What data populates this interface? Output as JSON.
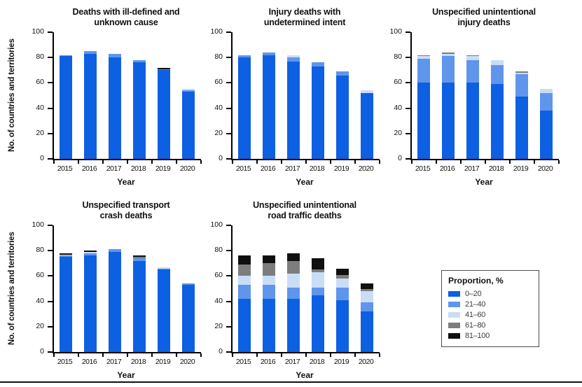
{
  "figure": {
    "x_axis_label": "Year",
    "y_axis_label": "No. of countries and territories"
  },
  "legend": {
    "title": "Proportion, %",
    "items": [
      {
        "label": "0–20",
        "color": "#0d60e2"
      },
      {
        "label": "21–40",
        "color": "#6095ec"
      },
      {
        "label": "41–60",
        "color": "#c9ddf6"
      },
      {
        "label": "61–80",
        "color": "#7d7d7d"
      },
      {
        "label": "81–100",
        "color": "#101010"
      }
    ]
  },
  "chart_data": [
    {
      "type": "bar",
      "stacked": true,
      "title_lines": [
        "Deaths with ill-defined and",
        "unknown cause"
      ],
      "categories": [
        "2015",
        "2016",
        "2017",
        "2018",
        "2019",
        "2020"
      ],
      "xlabel": "Year",
      "ylabel": "No. of countries and territories",
      "ylim": [
        0,
        100
      ],
      "yticks": [
        0,
        20,
        40,
        60,
        80,
        100
      ],
      "series": [
        {
          "name": "0–20",
          "values": [
            81,
            83,
            80,
            76,
            70,
            53
          ]
        },
        {
          "name": "21–40",
          "values": [
            1,
            2,
            3,
            2,
            0,
            1
          ]
        },
        {
          "name": "41–60",
          "values": [
            0,
            0,
            0,
            0,
            0,
            1
          ]
        },
        {
          "name": "61–80",
          "values": [
            0,
            0,
            0,
            0,
            1,
            0
          ]
        },
        {
          "name": "81–100",
          "values": [
            0,
            0,
            0,
            0,
            1,
            0
          ]
        }
      ]
    },
    {
      "type": "bar",
      "stacked": true,
      "title_lines": [
        "Injury deaths with",
        "undetermined intent"
      ],
      "categories": [
        "2015",
        "2016",
        "2017",
        "2018",
        "2019",
        "2020"
      ],
      "xlabel": "Year",
      "ylabel": "",
      "ylim": [
        0,
        100
      ],
      "yticks": [
        0,
        20,
        40,
        60,
        80,
        100
      ],
      "series": [
        {
          "name": "0–20",
          "values": [
            80,
            82,
            77,
            73,
            66,
            52
          ]
        },
        {
          "name": "21–40",
          "values": [
            2,
            2,
            3,
            3,
            3,
            0
          ]
        },
        {
          "name": "41–60",
          "values": [
            0,
            0,
            2,
            0,
            0,
            2
          ]
        },
        {
          "name": "61–80",
          "values": [
            0,
            0,
            0,
            0,
            0,
            0
          ]
        },
        {
          "name": "81–100",
          "values": [
            0,
            0,
            0,
            0,
            0,
            0
          ]
        }
      ]
    },
    {
      "type": "bar",
      "stacked": true,
      "title_lines": [
        "Unspecified unintentional",
        "injury deaths"
      ],
      "categories": [
        "2015",
        "2016",
        "2017",
        "2018",
        "2019",
        "2020"
      ],
      "xlabel": "Year",
      "ylabel": "",
      "ylim": [
        0,
        100
      ],
      "yticks": [
        0,
        20,
        40,
        60,
        80,
        100
      ],
      "series": [
        {
          "name": "0–20",
          "values": [
            60,
            60,
            60,
            59,
            49,
            38
          ]
        },
        {
          "name": "21–40",
          "values": [
            19,
            21,
            18,
            15,
            18,
            14
          ]
        },
        {
          "name": "41–60",
          "values": [
            2,
            2,
            3,
            4,
            1,
            3
          ]
        },
        {
          "name": "61–80",
          "values": [
            1,
            1,
            1,
            0,
            1,
            0
          ]
        },
        {
          "name": "81–100",
          "values": [
            0,
            0,
            0,
            0,
            0,
            0
          ]
        }
      ]
    },
    {
      "type": "bar",
      "stacked": true,
      "title_lines": [
        "Unspecified transport",
        "crash deaths"
      ],
      "categories": [
        "2015",
        "2016",
        "2017",
        "2018",
        "2019",
        "2020"
      ],
      "xlabel": "Year",
      "ylabel": "No. of countries and territories",
      "ylim": [
        0,
        100
      ],
      "yticks": [
        0,
        20,
        40,
        60,
        80,
        100
      ],
      "series": [
        {
          "name": "0–20",
          "values": [
            75,
            76,
            79,
            72,
            65,
            53
          ]
        },
        {
          "name": "21–40",
          "values": [
            1,
            2,
            2,
            2,
            1,
            1
          ]
        },
        {
          "name": "41–60",
          "values": [
            1,
            1,
            0,
            0,
            1,
            0
          ]
        },
        {
          "name": "61–80",
          "values": [
            0,
            0,
            0,
            1,
            0,
            0
          ]
        },
        {
          "name": "81–100",
          "values": [
            1,
            1,
            0,
            1,
            0,
            0
          ]
        }
      ]
    },
    {
      "type": "bar",
      "stacked": true,
      "title_lines": [
        "Unspecified unintentional",
        "road traffic deaths"
      ],
      "categories": [
        "2015",
        "2016",
        "2017",
        "2018",
        "2019",
        "2020"
      ],
      "xlabel": "Year",
      "ylabel": "",
      "ylim": [
        0,
        100
      ],
      "yticks": [
        0,
        20,
        40,
        60,
        80,
        100
      ],
      "series": [
        {
          "name": "0–20",
          "values": [
            42,
            42,
            42,
            45,
            41,
            32
          ]
        },
        {
          "name": "21–40",
          "values": [
            11,
            11,
            9,
            6,
            10,
            7
          ]
        },
        {
          "name": "41–60",
          "values": [
            7,
            7,
            11,
            12,
            7,
            9
          ]
        },
        {
          "name": "61–80",
          "values": [
            9,
            10,
            10,
            2,
            3,
            2
          ]
        },
        {
          "name": "81–100",
          "values": [
            7,
            6,
            6,
            9,
            5,
            4
          ]
        }
      ]
    }
  ]
}
